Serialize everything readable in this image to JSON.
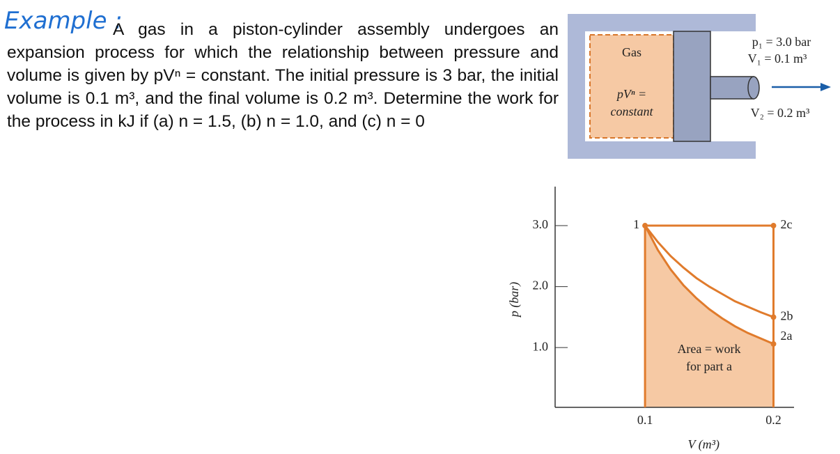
{
  "example": {
    "heading": "Example :",
    "text": "A gas in a piston-cylinder assembly undergoes an expansion process for which the relationship between pressure and volume is given by pVⁿ = constant. The initial pressure is 3 bar, the initial volume is 0.1 m³, and the final volume is 0.2 m³. Determine the work for the process in kJ if (a) n = 1.5, (b) n = 1.0, and (c) n = 0"
  },
  "diagram": {
    "gas": "Gas",
    "relation_1": "pVⁿ =",
    "relation_2": "constant",
    "p1": "p₁ = 3.0 bar",
    "v1": "V₁ = 0.1 m³",
    "v2": "V₂ = 0.2 m³"
  },
  "chart_data": {
    "type": "line",
    "x_label": "V (m³)",
    "y_label": "p (bar)",
    "x": [
      0.1,
      0.11,
      0.12,
      0.13,
      0.14,
      0.15,
      0.16,
      0.17,
      0.18,
      0.19,
      0.2
    ],
    "series": [
      {
        "name": "2a",
        "color": "#e07b2c",
        "values": [
          3,
          2.6,
          2.28,
          2.02,
          1.81,
          1.63,
          1.48,
          1.35,
          1.24,
          1.15,
          1.06
        ]
      },
      {
        "name": "2b",
        "color": "#e07b2c",
        "values": [
          3,
          2.73,
          2.5,
          2.31,
          2.14,
          2.0,
          1.88,
          1.76,
          1.67,
          1.58,
          1.5
        ]
      },
      {
        "name": "2c",
        "color": "#e07b2c",
        "values": [
          3,
          3,
          3,
          3,
          3,
          3,
          3,
          3,
          3,
          3,
          3
        ]
      }
    ],
    "start_label": "1",
    "area_label": [
      "Area = work",
      "for part a"
    ],
    "area_color": "#f6c9a4",
    "xlim": [
      0.03,
      0.216
    ],
    "ylim": [
      0.02,
      3.64
    ],
    "xticks": [
      {
        "value": 0.1,
        "label": "0.1"
      },
      {
        "value": 0.2,
        "label": "0.2"
      }
    ],
    "yticks": [
      {
        "value": 1,
        "label": "1.0"
      },
      {
        "value": 2,
        "label": "2.0"
      },
      {
        "value": 3,
        "label": "3.0"
      }
    ]
  }
}
